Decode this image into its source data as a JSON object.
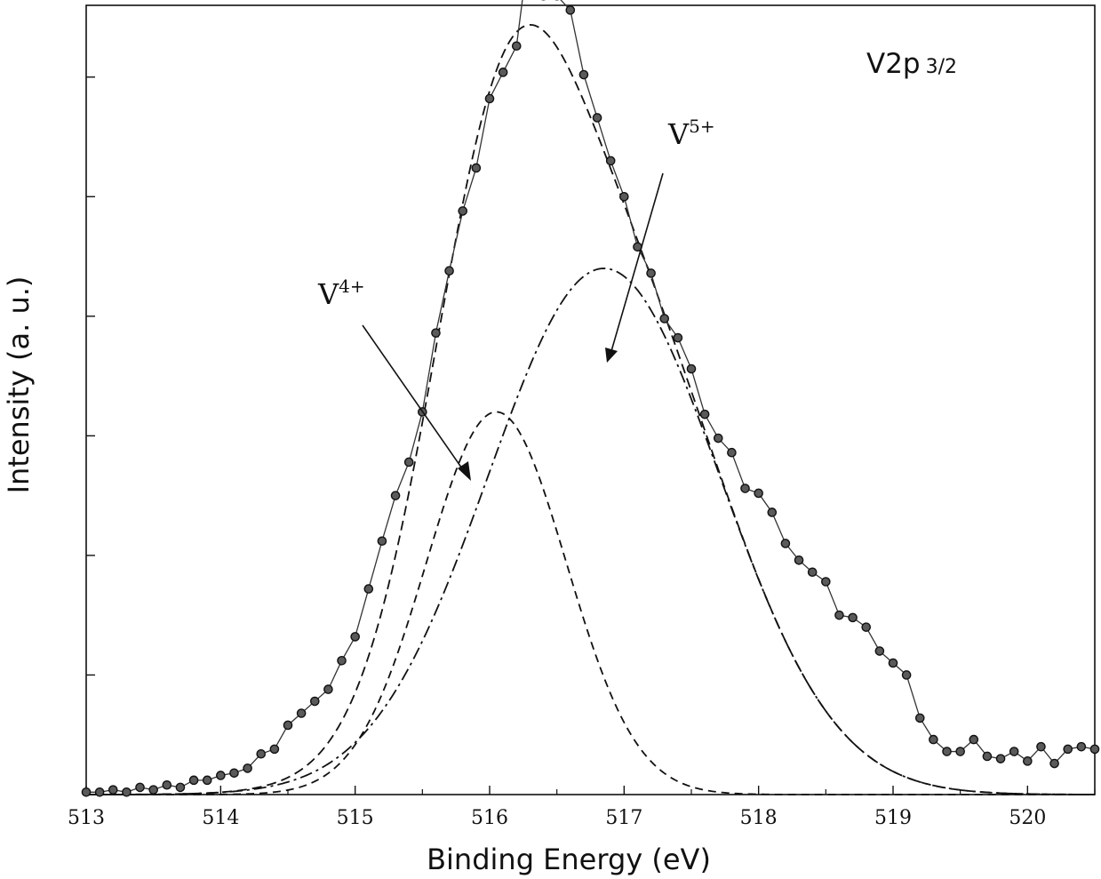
{
  "chart_data": {
    "type": "line",
    "title": "V2p 3/2",
    "title_parts": {
      "main": "V2p",
      "sub": "3/2"
    },
    "xlabel": "Binding Energy (eV)",
    "ylabel": "Intensity (a. u.)",
    "xlim": [
      513,
      520.5
    ],
    "ylim": [
      0,
      330
    ],
    "xticks": [
      513,
      514,
      515,
      516,
      517,
      518,
      519,
      520
    ],
    "yticks_minor": [
      50,
      100,
      150,
      200,
      250,
      300
    ],
    "grid": false,
    "series": [
      {
        "name": "Experimental data",
        "style": "solid line with circle markers",
        "x": [
          513.0,
          513.1,
          513.2,
          513.3,
          513.4,
          513.5,
          513.6,
          513.7,
          513.8,
          513.9,
          514.0,
          514.1,
          514.2,
          514.3,
          514.4,
          514.5,
          514.6,
          514.7,
          514.8,
          514.9,
          515.0,
          515.1,
          515.2,
          515.3,
          515.4,
          515.5,
          515.6,
          515.7,
          515.8,
          515.9,
          516.0,
          516.1,
          516.2,
          516.25,
          516.3,
          516.4,
          516.5,
          516.6,
          516.7,
          516.8,
          516.9,
          517.0,
          517.1,
          517.2,
          517.3,
          517.4,
          517.5,
          517.6,
          517.7,
          517.8,
          517.9,
          518.0,
          518.1,
          518.2,
          518.3,
          518.4,
          518.5,
          518.6,
          518.7,
          518.8,
          518.9,
          519.0,
          519.1,
          519.2,
          519.3,
          519.4,
          519.5,
          519.6,
          519.7,
          519.8,
          519.9,
          520.0,
          520.1,
          520.2,
          520.3,
          520.4,
          520.5
        ],
        "y": [
          1,
          1,
          2,
          1,
          3,
          2,
          4,
          3,
          6,
          6,
          8,
          9,
          11,
          17,
          19,
          29,
          34,
          39,
          44,
          56,
          66,
          86,
          106,
          125,
          139,
          160,
          193,
          219,
          244,
          262,
          291,
          302,
          313,
          335,
          336,
          334,
          334,
          328,
          301,
          283,
          265,
          250,
          229,
          218,
          199,
          191,
          178,
          159,
          149,
          143,
          128,
          126,
          118,
          105,
          98,
          93,
          89,
          75,
          74,
          70,
          60,
          55,
          50,
          32,
          23,
          18,
          18,
          23,
          16,
          15,
          18,
          14,
          20,
          13,
          19,
          20,
          19
        ]
      },
      {
        "name": "Fitted envelope",
        "style": "dashed",
        "components": [
          "V4+",
          "V5+"
        ]
      },
      {
        "name": "V4+",
        "style": "dashed",
        "peak_center": 516.05,
        "peak_height": 160,
        "sigma": 0.52
      },
      {
        "name": "V5+",
        "style": "dash-dot",
        "peak_center": 516.85,
        "peak_height": 220,
        "sigma": 0.86
      }
    ],
    "annotations": [
      {
        "label": "V",
        "sup": "4+",
        "points_to": "V4+ component"
      },
      {
        "label": "V",
        "sup": "5+",
        "points_to": "V5+ component"
      }
    ]
  }
}
